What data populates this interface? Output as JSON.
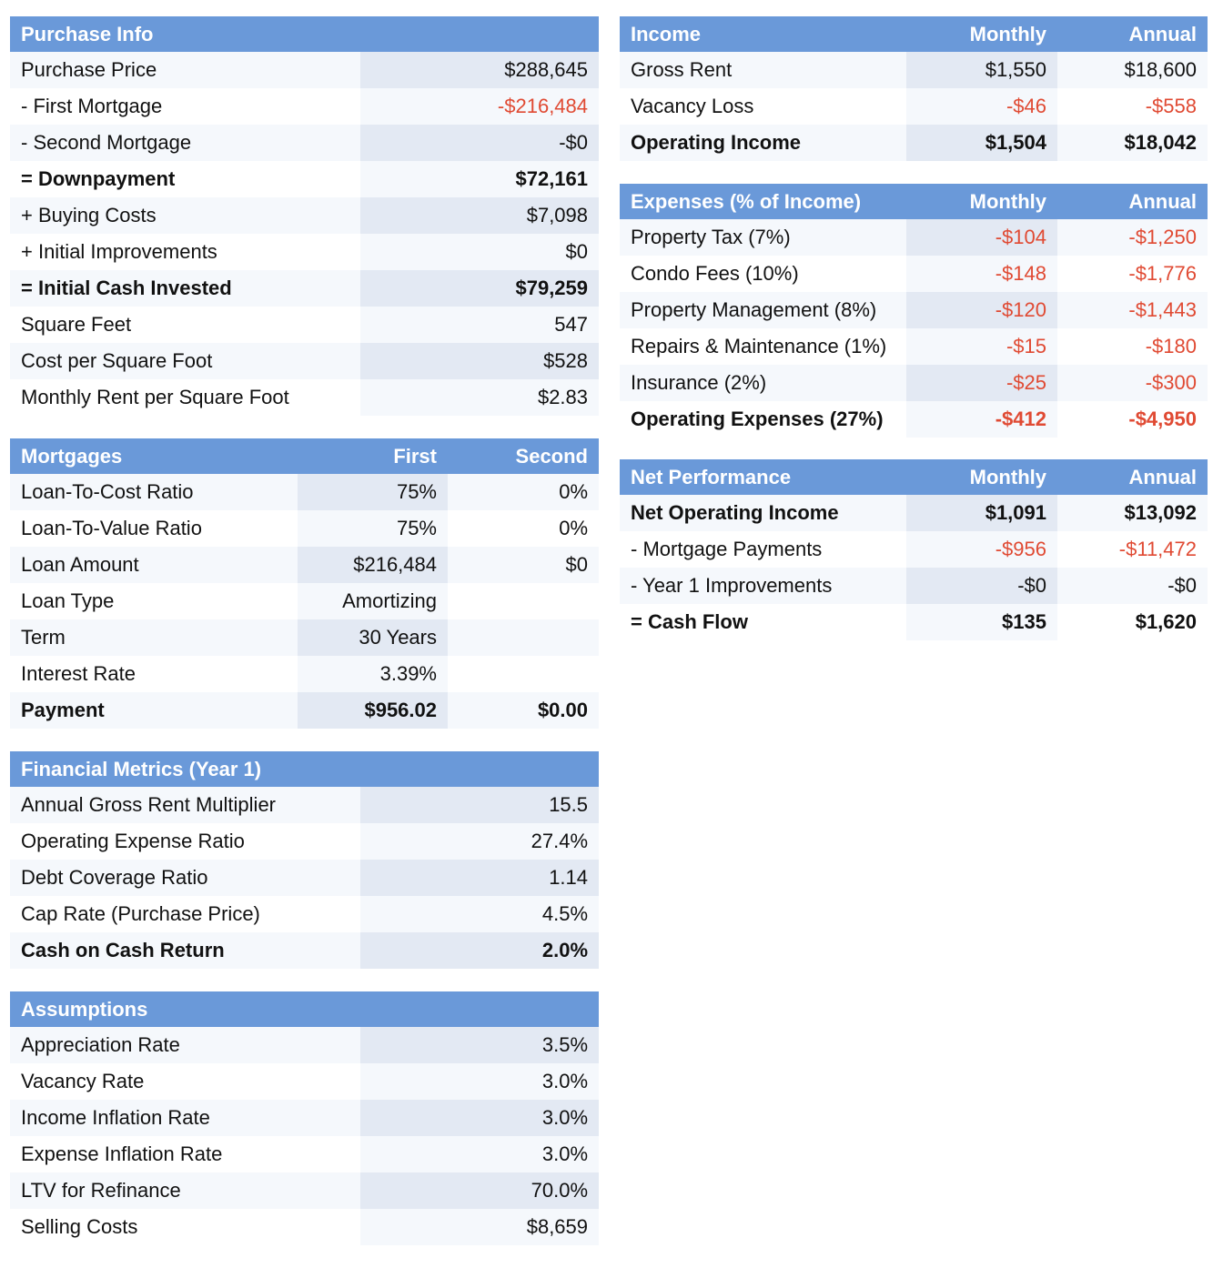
{
  "purchase_info": {
    "header": "Purchase Info",
    "rows": [
      {
        "label": "Purchase Price",
        "value": "$288,645"
      },
      {
        "label": "- First Mortgage",
        "value": "-$216,484"
      },
      {
        "label": "- Second Mortgage",
        "value": "-$0"
      },
      {
        "label": "= Downpayment",
        "value": "$72,161"
      },
      {
        "label": "+ Buying Costs",
        "value": "$7,098"
      },
      {
        "label": "+ Initial Improvements",
        "value": "$0"
      },
      {
        "label": "= Initial Cash Invested",
        "value": "$79,259"
      },
      {
        "label": "Square Feet",
        "value": "547"
      },
      {
        "label": "Cost per Square Foot",
        "value": "$528"
      },
      {
        "label": "Monthly Rent per Square Foot",
        "value": "$2.83"
      }
    ]
  },
  "mortgages": {
    "header": "Mortgages",
    "col_first": "First",
    "col_second": "Second",
    "rows": [
      {
        "label": "Loan-To-Cost Ratio",
        "first": "75%",
        "second": "0%"
      },
      {
        "label": "Loan-To-Value Ratio",
        "first": "75%",
        "second": "0%"
      },
      {
        "label": "Loan Amount",
        "first": "$216,484",
        "second": "$0"
      },
      {
        "label": "Loan Type",
        "first": "Amortizing",
        "second": ""
      },
      {
        "label": "Term",
        "first": "30 Years",
        "second": ""
      },
      {
        "label": "Interest Rate",
        "first": "3.39%",
        "second": ""
      },
      {
        "label": "Payment",
        "first": "$956.02",
        "second": "$0.00"
      }
    ]
  },
  "financial_metrics": {
    "header": "Financial Metrics (Year 1)",
    "rows": [
      {
        "label": "Annual Gross Rent Multiplier",
        "value": "15.5"
      },
      {
        "label": "Operating Expense Ratio",
        "value": "27.4%"
      },
      {
        "label": "Debt Coverage Ratio",
        "value": "1.14"
      },
      {
        "label": "Cap Rate (Purchase Price)",
        "value": "4.5%"
      },
      {
        "label": "Cash on Cash Return",
        "value": "2.0%"
      }
    ]
  },
  "assumptions": {
    "header": "Assumptions",
    "rows": [
      {
        "label": "Appreciation Rate",
        "value": "3.5%"
      },
      {
        "label": "Vacancy Rate",
        "value": "3.0%"
      },
      {
        "label": "Income Inflation Rate",
        "value": "3.0%"
      },
      {
        "label": "Expense Inflation Rate",
        "value": "3.0%"
      },
      {
        "label": "LTV for Refinance",
        "value": "70.0%"
      },
      {
        "label": "Selling Costs",
        "value": "$8,659"
      }
    ]
  },
  "income": {
    "header": "Income",
    "col_monthly": "Monthly",
    "col_annual": "Annual",
    "rows": [
      {
        "label": "Gross Rent",
        "monthly": "$1,550",
        "annual": "$18,600"
      },
      {
        "label": "Vacancy Loss",
        "monthly": "-$46",
        "annual": "-$558"
      },
      {
        "label": "Operating Income",
        "monthly": "$1,504",
        "annual": "$18,042"
      }
    ]
  },
  "expenses": {
    "header": "Expenses (% of Income)",
    "col_monthly": "Monthly",
    "col_annual": "Annual",
    "rows": [
      {
        "label": "Property Tax (7%)",
        "monthly": "-$104",
        "annual": "-$1,250"
      },
      {
        "label": "Condo Fees (10%)",
        "monthly": "-$148",
        "annual": "-$1,776"
      },
      {
        "label": "Property Management (8%)",
        "monthly": "-$120",
        "annual": "-$1,443"
      },
      {
        "label": "Repairs & Maintenance (1%)",
        "monthly": "-$15",
        "annual": "-$180"
      },
      {
        "label": "Insurance (2%)",
        "monthly": "-$25",
        "annual": "-$300"
      },
      {
        "label": "Operating Expenses (27%)",
        "monthly": "-$412",
        "annual": "-$4,950"
      }
    ]
  },
  "net_performance": {
    "header": "Net Performance",
    "col_monthly": "Monthly",
    "col_annual": "Annual",
    "rows": [
      {
        "label": "Net Operating Income",
        "monthly": "$1,091",
        "annual": "$13,092"
      },
      {
        "label": "- Mortgage Payments",
        "monthly": "-$956",
        "annual": "-$11,472"
      },
      {
        "label": "- Year 1 Improvements",
        "monthly": "-$0",
        "annual": "-$0"
      },
      {
        "label": "= Cash Flow",
        "monthly": "$135",
        "annual": "$1,620"
      }
    ]
  },
  "colors": {
    "header_bg": "#6a99d9",
    "negative_text": "#e04a33",
    "row_light": "#f5f8fc",
    "cell_shade": "#e3e9f3"
  }
}
